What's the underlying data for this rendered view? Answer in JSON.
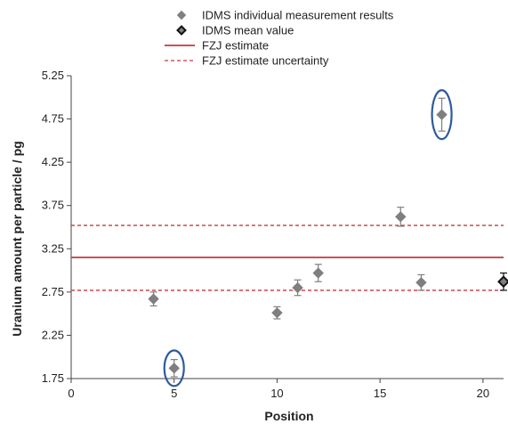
{
  "chart_data": {
    "type": "scatter",
    "xlabel": "Position",
    "ylabel": "Uranium amount per particle / pg",
    "xlim": [
      0,
      21
    ],
    "ylim": [
      1.75,
      5.25
    ],
    "x_ticks": [
      0,
      5,
      10,
      15,
      20
    ],
    "y_ticks": [
      1.75,
      2.25,
      2.75,
      3.25,
      3.75,
      4.25,
      4.75,
      5.25
    ],
    "x_tick_labels": [
      "0",
      "5",
      "10",
      "15",
      "20"
    ],
    "y_tick_labels": [
      "1.75",
      "2.25",
      "2.75",
      "3.25",
      "3.75",
      "4.25",
      "4.75",
      "5.25"
    ],
    "grid": false,
    "legend_position": "top",
    "legend": [
      {
        "label": "IDMS individual measurement results",
        "kind": "marker",
        "color": "#7f7f7f"
      },
      {
        "label": "IDMS mean value",
        "kind": "marker-outline",
        "color": "#111111"
      },
      {
        "label": "FZJ estimate",
        "kind": "line",
        "color": "#c8373d",
        "dashed": false
      },
      {
        "label": "FZJ estimate uncertainty",
        "kind": "line",
        "color": "#c8373d",
        "dashed": true
      }
    ],
    "series": [
      {
        "name": "IDMS individual measurement results",
        "color": "#7f7f7f",
        "marker": "diamond",
        "points": [
          {
            "x": 4,
            "y": 2.67,
            "err": 0.08
          },
          {
            "x": 5,
            "y": 1.87,
            "err": 0.1,
            "highlight": true
          },
          {
            "x": 10,
            "y": 2.51,
            "err": 0.07
          },
          {
            "x": 11,
            "y": 2.8,
            "err": 0.09
          },
          {
            "x": 12,
            "y": 2.97,
            "err": 0.1
          },
          {
            "x": 16,
            "y": 3.62,
            "err": 0.11
          },
          {
            "x": 17,
            "y": 2.86,
            "err": 0.09
          },
          {
            "x": 18,
            "y": 4.8,
            "err": 0.19,
            "highlight": true
          }
        ]
      },
      {
        "name": "IDMS mean value",
        "color": "#111111",
        "marker": "diamond-outline",
        "points": [
          {
            "x": 21,
            "y": 2.87,
            "err": 0.1
          }
        ]
      }
    ],
    "reference_lines": [
      {
        "name": "FZJ estimate",
        "y": 3.15,
        "color": "#c8373d",
        "dashed": false
      },
      {
        "name": "FZJ estimate uncertainty",
        "y": 3.52,
        "color": "#c8373d",
        "dashed": true
      },
      {
        "name": "FZJ estimate uncertainty",
        "y": 2.77,
        "color": "#c8373d",
        "dashed": true
      }
    ],
    "highlight_color": "#2f5b9a"
  }
}
